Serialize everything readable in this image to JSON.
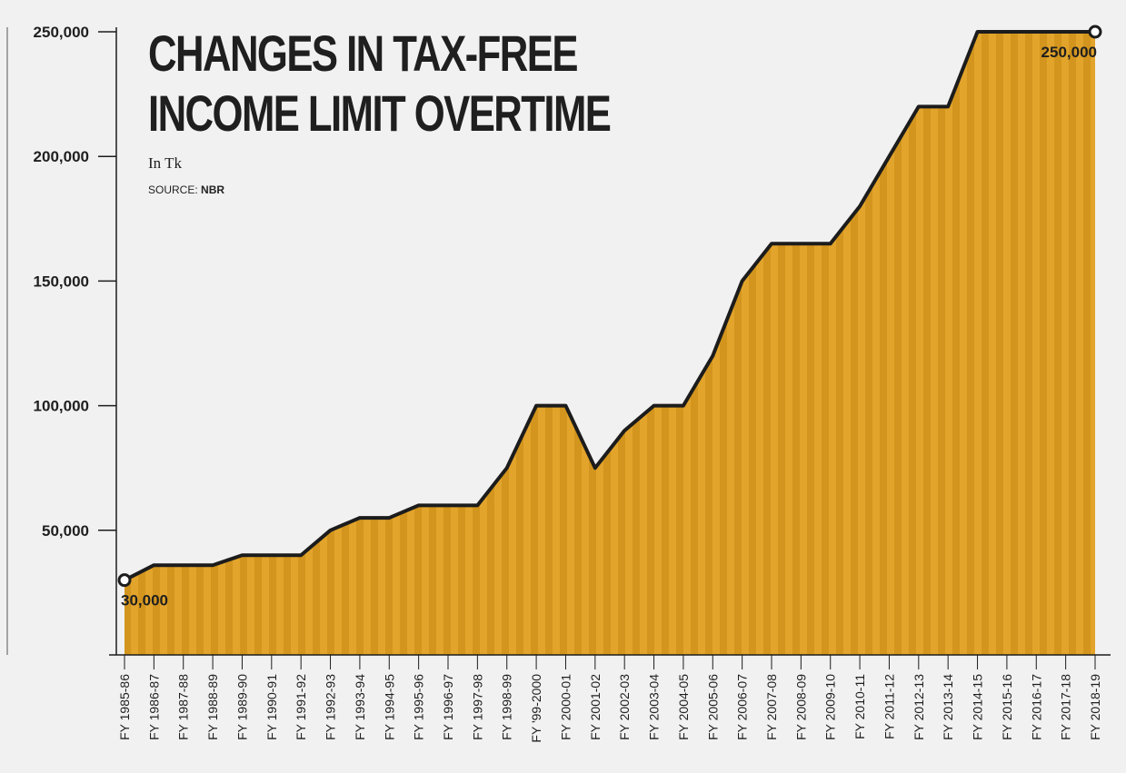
{
  "chart_data": {
    "type": "area",
    "title_line1": "CHANGES IN TAX-FREE",
    "title_line2": "INCOME LIMIT OVERTIME",
    "subtitle": "In Tk",
    "source_label": "SOURCE:",
    "source_name": "NBR",
    "ylim": [
      0,
      250000
    ],
    "yticks": [
      50000,
      100000,
      150000,
      200000,
      250000
    ],
    "ytick_labels": [
      "50,000",
      "100,000",
      "150,000",
      "200,000",
      "250,000"
    ],
    "grid": false,
    "categories": [
      "FY 1985-86",
      "FY 1986-87",
      "FY 1987-88",
      "FY 1988-89",
      "FY 1989-90",
      "FY 1990-91",
      "FY 1991-92",
      "FY 1992-93",
      "FY 1993-94",
      "FY 1994-95",
      "FY 1995-96",
      "FY 1996-97",
      "FY 1997-98",
      "FY 1998-99",
      "FY '99-2000",
      "FY 2000-01",
      "FY 2001-02",
      "FY 2002-03",
      "FY 2003-04",
      "FY 2004-05",
      "FY 2005-06",
      "FY 2006-07",
      "FY 2007-08",
      "FY 2008-09",
      "FY 2009-10",
      "FY 2010-11",
      "FY 2011-12",
      "FY 2012-13",
      "FY 2013-14",
      "FY 2014-15",
      "FY 2015-16",
      "FY 2016-17",
      "FY 2017-18",
      "FY 2018-19"
    ],
    "values": [
      30000,
      36000,
      36000,
      36000,
      40000,
      40000,
      40000,
      50000,
      55000,
      55000,
      60000,
      60000,
      60000,
      75000,
      100000,
      100000,
      75000,
      90000,
      100000,
      100000,
      120000,
      150000,
      165000,
      165000,
      165000,
      180000,
      200000,
      220000,
      220000,
      250000,
      250000,
      250000,
      250000,
      250000
    ],
    "annotations": [
      {
        "index": 0,
        "text": "30,000",
        "position": "below-right"
      },
      {
        "index": 33,
        "text": "250,000",
        "position": "below-left"
      }
    ],
    "colors": {
      "fill": "#e3a42b",
      "stripe_dark": "#cf8f18",
      "line": "#1c1c1c",
      "background": "#f1f1f1"
    }
  }
}
